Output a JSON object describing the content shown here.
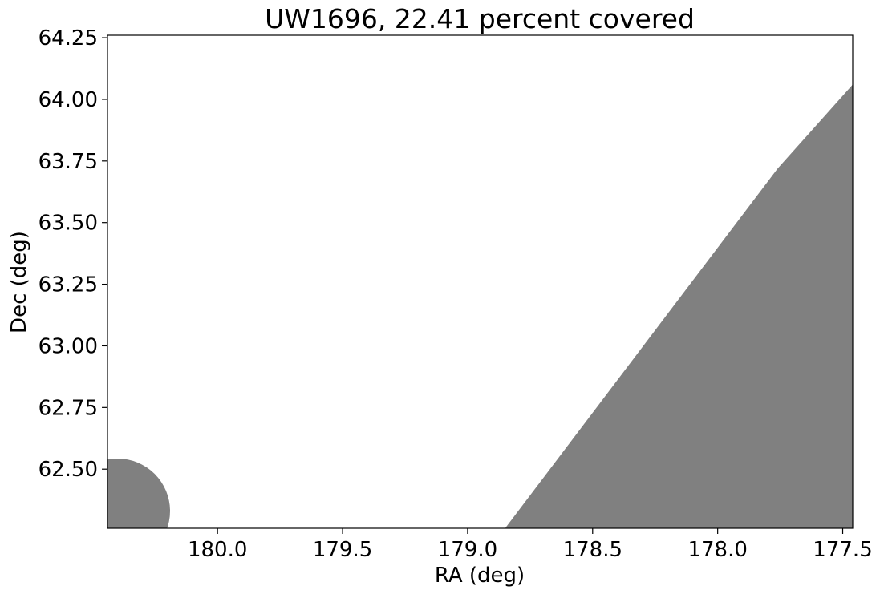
{
  "chart_data": {
    "type": "area",
    "title": "UW1696, 22.41 percent covered",
    "xlabel": "RA (deg)",
    "ylabel": "Dec (deg)",
    "xlim": [
      180.44,
      177.46
    ],
    "ylim": [
      62.26,
      64.26
    ],
    "x_ticks": [
      180.0,
      179.5,
      179.0,
      178.5,
      178.0,
      177.5
    ],
    "x_tick_labels": [
      "180.0",
      "179.5",
      "179.0",
      "178.5",
      "178.0",
      "177.5"
    ],
    "y_ticks": [
      62.5,
      62.75,
      63.0,
      63.25,
      63.5,
      63.75,
      64.0,
      64.25
    ],
    "y_tick_labels": [
      "62.50",
      "62.75",
      "63.00",
      "63.25",
      "63.50",
      "63.75",
      "64.00",
      "64.25"
    ],
    "grid": false,
    "fill_color": "#808080",
    "coverage_regions": [
      {
        "shape": "polygon",
        "ra": [
          178.85,
          177.76,
          177.46,
          177.46
        ],
        "dec": [
          62.26,
          63.72,
          64.06,
          62.26
        ]
      },
      {
        "shape": "circle",
        "center_ra": 180.4,
        "center_dec": 62.33,
        "radius_deg": 0.21
      }
    ]
  }
}
